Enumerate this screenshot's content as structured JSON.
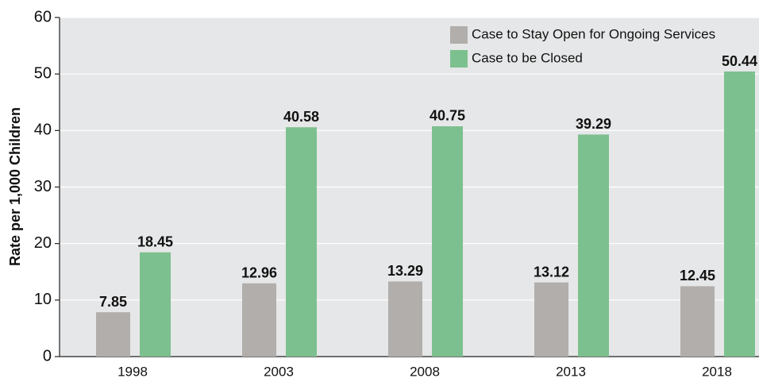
{
  "chart_data": {
    "type": "bar",
    "ylabel": "Rate per 1,000 Children",
    "categories": [
      "1998",
      "2003",
      "2008",
      "2013",
      "2018"
    ],
    "series": [
      {
        "name": "Case to Stay Open for Ongoing Services",
        "color": "#b1aeab",
        "values": [
          7.85,
          12.96,
          13.29,
          13.12,
          12.45
        ]
      },
      {
        "name": "Case to be Closed",
        "color": "#7dc08f",
        "values": [
          18.45,
          40.58,
          40.75,
          39.29,
          50.44
        ]
      }
    ],
    "ylim": [
      0,
      60
    ],
    "yticks": [
      0,
      10,
      20,
      30,
      40,
      50,
      60
    ],
    "grid": true,
    "legend": "upper right"
  }
}
